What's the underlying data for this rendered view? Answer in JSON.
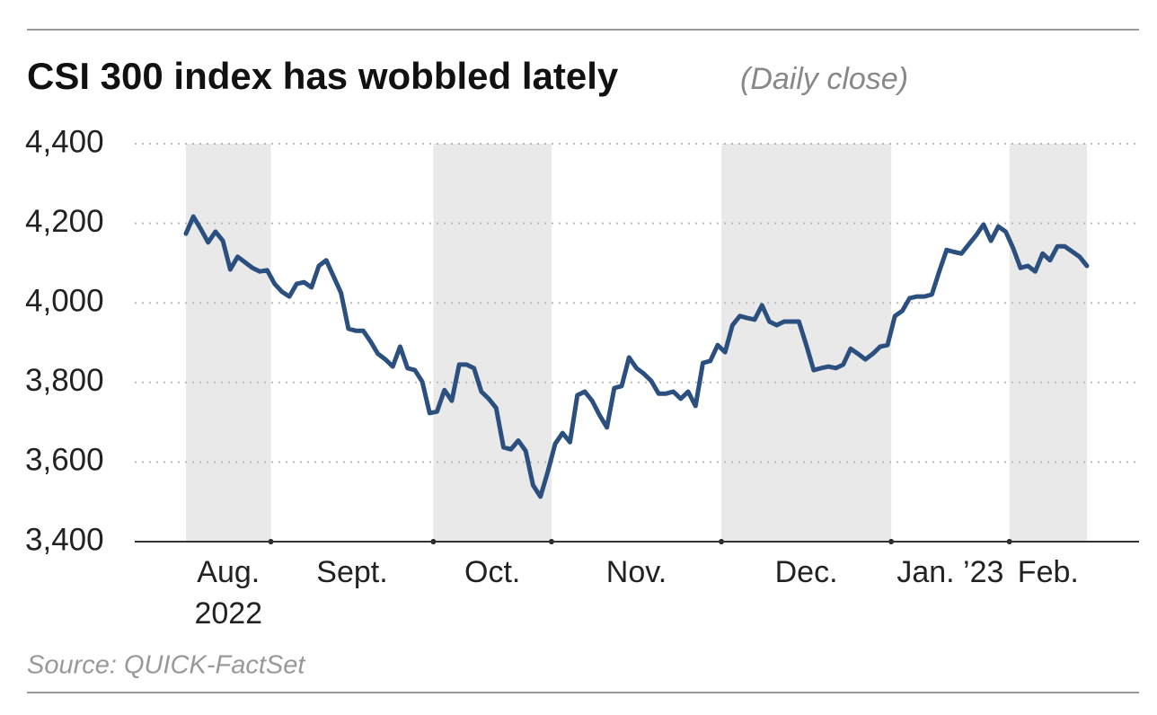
{
  "chart_data": {
    "type": "line",
    "title": "CSI 300 index has wobbled lately",
    "subtitle": "(Daily close)",
    "source": "Source: QUICK-FactSet",
    "color": "#2b4f7e",
    "grid": true,
    "ylim": [
      3400,
      4400
    ],
    "yticks": [
      {
        "value": 3400,
        "label": "3,400"
      },
      {
        "value": 3600,
        "label": "3,600"
      },
      {
        "value": 3800,
        "label": "3,800"
      },
      {
        "value": 4000,
        "label": "4,000"
      },
      {
        "value": 4200,
        "label": "4,200"
      },
      {
        "value": 4400,
        "label": "4,400"
      }
    ],
    "categories": [
      "Aug. 2022",
      "Aug. 2022",
      "Aug. 2022",
      "Aug. 2022",
      "Aug. 2022",
      "Aug. 2022",
      "Aug. 2022",
      "Aug. 2022",
      "Aug. 2022",
      "Aug. 2022",
      "Aug. 2022",
      "Aug. 2022",
      "Sept.",
      "Sept.",
      "Sept.",
      "Sept.",
      "Sept.",
      "Sept.",
      "Sept.",
      "Sept.",
      "Sept.",
      "Sept.",
      "Sept.",
      "Sept.",
      "Sept.",
      "Sept.",
      "Sept.",
      "Sept.",
      "Sept.",
      "Sept.",
      "Sept.",
      "Sept.",
      "Sept.",
      "Sept.",
      "Oct.",
      "Oct.",
      "Oct.",
      "Oct.",
      "Oct.",
      "Oct.",
      "Oct.",
      "Oct.",
      "Oct.",
      "Oct.",
      "Oct.",
      "Oct.",
      "Oct.",
      "Oct.",
      "Oct.",
      "Oct.",
      "Nov.",
      "Nov.",
      "Nov.",
      "Nov.",
      "Nov.",
      "Nov.",
      "Nov.",
      "Nov.",
      "Nov.",
      "Nov.",
      "Nov.",
      "Nov.",
      "Nov.",
      "Nov.",
      "Nov.",
      "Nov.",
      "Nov.",
      "Nov.",
      "Nov.",
      "Nov.",
      "Nov.",
      "Nov.",
      "Nov.",
      "Dec.",
      "Dec.",
      "Dec.",
      "Dec.",
      "Dec.",
      "Dec.",
      "Dec.",
      "Dec.",
      "Dec.",
      "Dec.",
      "Dec.",
      "Dec.",
      "Dec.",
      "Dec.",
      "Dec.",
      "Dec.",
      "Dec.",
      "Dec.",
      "Dec.",
      "Dec.",
      "Dec.",
      "Dec.",
      "Dec.",
      "Jan. ’23",
      "Jan. ’23",
      "Jan. ’23",
      "Jan. ’23",
      "Jan. ’23",
      "Jan. ’23",
      "Jan. ’23",
      "Jan. ’23",
      "Jan. ’23",
      "Jan. ’23",
      "Jan. ’23",
      "Jan. ’23",
      "Jan. ’23",
      "Jan. ’23",
      "Jan. ’23",
      "Jan. ’23",
      "Feb.",
      "Feb.",
      "Feb.",
      "Feb.",
      "Feb.",
      "Feb.",
      "Feb.",
      "Feb.",
      "Feb.",
      "Feb.",
      "Feb."
    ],
    "values": [
      4174,
      4217,
      4186,
      4152,
      4179,
      4156,
      4084,
      4116,
      4102,
      4088,
      4079,
      4082,
      4048,
      4028,
      4016,
      4048,
      4052,
      4039,
      4093,
      4107,
      4066,
      4025,
      3935,
      3930,
      3930,
      3903,
      3872,
      3858,
      3840,
      3890,
      3836,
      3831,
      3802,
      3723,
      3727,
      3781,
      3754,
      3845,
      3845,
      3836,
      3777,
      3759,
      3736,
      3637,
      3632,
      3654,
      3628,
      3542,
      3513,
      3576,
      3646,
      3673,
      3650,
      3768,
      3777,
      3754,
      3718,
      3687,
      3786,
      3791,
      3863,
      3836,
      3822,
      3804,
      3772,
      3772,
      3777,
      3759,
      3777,
      3741,
      3849,
      3854,
      3894,
      3876,
      3944,
      3967,
      3962,
      3958,
      3994,
      3953,
      3944,
      3953,
      3953,
      3953,
      3894,
      3831,
      3836,
      3840,
      3836,
      3845,
      3885,
      3872,
      3858,
      3872,
      3890,
      3894,
      3967,
      3980,
      4012,
      4016,
      4016,
      4021,
      4079,
      4133,
      4128,
      4124,
      4147,
      4170,
      4197,
      4156,
      4192,
      4179,
      4138,
      4088,
      4093,
      4079,
      4124,
      4107,
      4142,
      4142,
      4129,
      4116,
      4093
    ]
  }
}
